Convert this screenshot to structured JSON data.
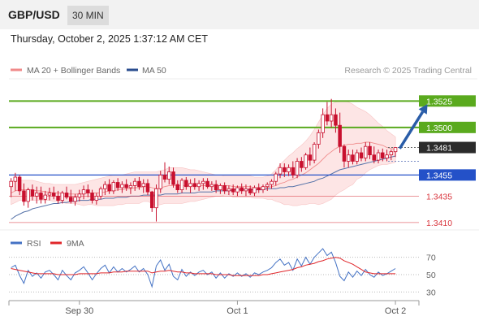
{
  "header": {
    "pair": "GBP/USD",
    "timeframe": "30 MIN",
    "timestamp": "Thursday, October 2, 2025 1:37:12 AM CET"
  },
  "legend": {
    "ma20": "MA 20 + Bollinger Bands",
    "ma50": "MA 50",
    "credit": "Research © 2025 Trading Central"
  },
  "rsi_legend": {
    "rsi": "RSI",
    "ma": "9MA"
  },
  "colors": {
    "resistance": "#5aaa1e",
    "support": "#2451c8",
    "current": "#2b2b2b",
    "support_level": "#d9363e",
    "arrow": "#2a5da8",
    "candle": "#c8102e",
    "band_fill": "#fde0e0"
  },
  "chart_data": [
    {
      "type": "candlestick",
      "levels": [
        {
          "value": 1.3525,
          "label": "1.3525",
          "kind": "resistance"
        },
        {
          "value": 1.35,
          "label": "1.3500",
          "kind": "resistance"
        },
        {
          "value": 1.3481,
          "label": "1.3481",
          "kind": "current"
        },
        {
          "value": 1.3455,
          "label": "1.3455",
          "kind": "pivot"
        },
        {
          "value": 1.3435,
          "label": "1.3435",
          "kind": "support"
        },
        {
          "value": 1.341,
          "label": "1.3410",
          "kind": "support"
        }
      ],
      "ylim": [
        1.3403,
        1.3546
      ],
      "xlim": [
        0,
        96
      ],
      "x_ticks": [
        {
          "x": 16.5,
          "label": "Sep 30"
        },
        {
          "x": 53.5,
          "label": "Oct 1"
        },
        {
          "x": 90.5,
          "label": "Oct 2"
        }
      ],
      "candles": [
        [
          1.3444,
          1.3452,
          1.3434,
          1.3449
        ],
        [
          1.3449,
          1.3457,
          1.344,
          1.3453
        ],
        [
          1.3453,
          1.3455,
          1.3436,
          1.344
        ],
        [
          1.344,
          1.3447,
          1.3426,
          1.343
        ],
        [
          1.343,
          1.3443,
          1.3424,
          1.3441
        ],
        [
          1.3441,
          1.3446,
          1.3431,
          1.3435
        ],
        [
          1.3435,
          1.3444,
          1.3428,
          1.3438
        ],
        [
          1.3438,
          1.3444,
          1.3428,
          1.3432
        ],
        [
          1.3432,
          1.344,
          1.3428,
          1.3436
        ],
        [
          1.3436,
          1.3443,
          1.3431,
          1.3438
        ],
        [
          1.3438,
          1.3444,
          1.3432,
          1.3435
        ],
        [
          1.3435,
          1.344,
          1.3428,
          1.3431
        ],
        [
          1.3431,
          1.344,
          1.3428,
          1.3438
        ],
        [
          1.3438,
          1.3444,
          1.3432,
          1.3434
        ],
        [
          1.3434,
          1.3441,
          1.3428,
          1.343
        ],
        [
          1.343,
          1.3437,
          1.3426,
          1.3434
        ],
        [
          1.3434,
          1.3441,
          1.343,
          1.3437
        ],
        [
          1.3437,
          1.3445,
          1.3432,
          1.3441
        ],
        [
          1.3441,
          1.3446,
          1.3434,
          1.3438
        ],
        [
          1.3438,
          1.3441,
          1.3428,
          1.3431
        ],
        [
          1.3431,
          1.3438,
          1.3427,
          1.3435
        ],
        [
          1.3435,
          1.3444,
          1.3432,
          1.3442
        ],
        [
          1.3442,
          1.3449,
          1.3436,
          1.3446
        ],
        [
          1.3446,
          1.3451,
          1.3437,
          1.344
        ],
        [
          1.344,
          1.345,
          1.3437,
          1.3448
        ],
        [
          1.3448,
          1.3452,
          1.344,
          1.3443
        ],
        [
          1.3443,
          1.3449,
          1.3438,
          1.3446
        ],
        [
          1.3446,
          1.3451,
          1.344,
          1.3443
        ],
        [
          1.3443,
          1.3448,
          1.3437,
          1.3445
        ],
        [
          1.3445,
          1.3452,
          1.344,
          1.3449
        ],
        [
          1.3449,
          1.3453,
          1.3441,
          1.3444
        ],
        [
          1.3444,
          1.3451,
          1.3438,
          1.3447
        ],
        [
          1.3447,
          1.3451,
          1.3436,
          1.3439
        ],
        [
          1.3439,
          1.344,
          1.342,
          1.3424
        ],
        [
          1.3424,
          1.3446,
          1.3411,
          1.3442
        ],
        [
          1.3442,
          1.3459,
          1.3438,
          1.3455
        ],
        [
          1.3455,
          1.3467,
          1.3448,
          1.3451
        ],
        [
          1.3451,
          1.3463,
          1.3446,
          1.3458
        ],
        [
          1.3458,
          1.3462,
          1.3443,
          1.3446
        ],
        [
          1.3446,
          1.345,
          1.3438,
          1.3441
        ],
        [
          1.3441,
          1.3452,
          1.3438,
          1.345
        ],
        [
          1.345,
          1.3453,
          1.3441,
          1.3444
        ],
        [
          1.3444,
          1.3451,
          1.3438,
          1.3447
        ],
        [
          1.3447,
          1.3452,
          1.3441,
          1.3444
        ],
        [
          1.3444,
          1.345,
          1.344,
          1.3447
        ],
        [
          1.3447,
          1.3452,
          1.3441,
          1.3449
        ],
        [
          1.3449,
          1.3452,
          1.3442,
          1.3444
        ],
        [
          1.3444,
          1.3449,
          1.344,
          1.3446
        ],
        [
          1.3446,
          1.345,
          1.3438,
          1.3441
        ],
        [
          1.3441,
          1.3447,
          1.3437,
          1.3445
        ],
        [
          1.3445,
          1.3448,
          1.3437,
          1.344
        ],
        [
          1.344,
          1.3445,
          1.3436,
          1.3442
        ],
        [
          1.3442,
          1.3446,
          1.3436,
          1.3439
        ],
        [
          1.3439,
          1.3445,
          1.3435,
          1.3443
        ],
        [
          1.3443,
          1.3447,
          1.3437,
          1.344
        ],
        [
          1.344,
          1.3446,
          1.3435,
          1.3442
        ],
        [
          1.3442,
          1.3445,
          1.3436,
          1.3438
        ],
        [
          1.3438,
          1.3445,
          1.3435,
          1.3443
        ],
        [
          1.3443,
          1.3447,
          1.3438,
          1.3441
        ],
        [
          1.3441,
          1.3446,
          1.3438,
          1.3444
        ],
        [
          1.3444,
          1.3448,
          1.344,
          1.3446
        ],
        [
          1.3446,
          1.3451,
          1.3442,
          1.3449
        ],
        [
          1.3449,
          1.3458,
          1.3445,
          1.3456
        ],
        [
          1.3456,
          1.3466,
          1.3452,
          1.3462
        ],
        [
          1.3462,
          1.3466,
          1.3453,
          1.3458
        ],
        [
          1.3458,
          1.3465,
          1.3454,
          1.3462
        ],
        [
          1.3462,
          1.3468,
          1.3452,
          1.3455
        ],
        [
          1.3455,
          1.3471,
          1.3452,
          1.3468
        ],
        [
          1.3468,
          1.3472,
          1.3458,
          1.3462
        ],
        [
          1.3462,
          1.3476,
          1.346,
          1.3474
        ],
        [
          1.3474,
          1.3481,
          1.3464,
          1.3469
        ],
        [
          1.3469,
          1.3486,
          1.3466,
          1.3484
        ],
        [
          1.3484,
          1.3498,
          1.348,
          1.3495
        ],
        [
          1.3495,
          1.3518,
          1.349,
          1.3512
        ],
        [
          1.3512,
          1.3524,
          1.3502,
          1.3506
        ],
        [
          1.3506,
          1.3527,
          1.35,
          1.3512
        ],
        [
          1.3512,
          1.3518,
          1.3495,
          1.3502
        ],
        [
          1.3502,
          1.3514,
          1.3476,
          1.3482
        ],
        [
          1.3482,
          1.3484,
          1.3462,
          1.3468
        ],
        [
          1.3468,
          1.3479,
          1.3462,
          1.3474
        ],
        [
          1.3474,
          1.3479,
          1.3465,
          1.3468
        ],
        [
          1.3468,
          1.3479,
          1.3465,
          1.3476
        ],
        [
          1.3476,
          1.3481,
          1.3468,
          1.3471
        ],
        [
          1.3471,
          1.3486,
          1.3468,
          1.3482
        ],
        [
          1.3482,
          1.3486,
          1.347,
          1.3474
        ],
        [
          1.3474,
          1.3482,
          1.3466,
          1.3469
        ],
        [
          1.3469,
          1.3479,
          1.3466,
          1.3476
        ],
        [
          1.3476,
          1.348,
          1.3468,
          1.3471
        ],
        [
          1.3471,
          1.3479,
          1.3468,
          1.3474
        ],
        [
          1.3474,
          1.3479,
          1.3469,
          1.3477
        ],
        [
          1.3477,
          1.348,
          1.3472,
          1.3481
        ]
      ],
      "ma20": [
        1.3438,
        1.344,
        1.3441,
        1.3441,
        1.3441,
        1.3441,
        1.344,
        1.344,
        1.3439,
        1.3439,
        1.3438,
        1.3438,
        1.3438,
        1.3437,
        1.3437,
        1.3437,
        1.3437,
        1.3437,
        1.3438,
        1.3438,
        1.3438,
        1.3438,
        1.3439,
        1.344,
        1.344,
        1.3441,
        1.3441,
        1.3442,
        1.3442,
        1.3443,
        1.3443,
        1.3444,
        1.3444,
        1.3443,
        1.3442,
        1.3443,
        1.3444,
        1.3445,
        1.3445,
        1.3445,
        1.3445,
        1.3445,
        1.3445,
        1.3445,
        1.3445,
        1.3445,
        1.3445,
        1.3445,
        1.3445,
        1.3445,
        1.3445,
        1.3445,
        1.3444,
        1.3444,
        1.3444,
        1.3444,
        1.3444,
        1.3443,
        1.3443,
        1.3443,
        1.3443,
        1.3444,
        1.3445,
        1.3447,
        1.3448,
        1.345,
        1.3451,
        1.3453,
        1.3455,
        1.3457,
        1.346,
        1.3463,
        1.3466,
        1.347,
        1.3474,
        1.3477,
        1.348,
        1.3482,
        1.3483,
        1.3484,
        1.3484,
        1.3485,
        1.3485,
        1.3486,
        1.3486,
        1.3485,
        1.3484,
        1.3483,
        1.3481,
        1.348,
        1.3479
      ],
      "bb_upper": [
        1.3449,
        1.345,
        1.345,
        1.345,
        1.345,
        1.345,
        1.3449,
        1.3448,
        1.3447,
        1.3447,
        1.3446,
        1.3446,
        1.3446,
        1.3446,
        1.3446,
        1.3446,
        1.3447,
        1.3448,
        1.3449,
        1.345,
        1.3451,
        1.3452,
        1.3453,
        1.3454,
        1.3455,
        1.3455,
        1.3455,
        1.3456,
        1.3457,
        1.3458,
        1.3458,
        1.3458,
        1.3458,
        1.3458,
        1.3458,
        1.3459,
        1.346,
        1.3462,
        1.3462,
        1.3462,
        1.3462,
        1.3461,
        1.346,
        1.346,
        1.3459,
        1.3458,
        1.3457,
        1.3456,
        1.3455,
        1.3455,
        1.3454,
        1.3454,
        1.3454,
        1.3454,
        1.3454,
        1.3454,
        1.3454,
        1.3453,
        1.3453,
        1.3453,
        1.3454,
        1.3456,
        1.346,
        1.3465,
        1.3469,
        1.3473,
        1.3476,
        1.348,
        1.3483,
        1.3487,
        1.3492,
        1.3498,
        1.3505,
        1.3512,
        1.3518,
        1.3522,
        1.3524,
        1.3525,
        1.3525,
        1.3524,
        1.3522,
        1.3519,
        1.3517,
        1.3515,
        1.3512,
        1.3508,
        1.3504,
        1.3501,
        1.3497,
        1.3494,
        1.3491
      ],
      "bb_lower": [
        1.3427,
        1.3429,
        1.3431,
        1.3431,
        1.3431,
        1.3431,
        1.3431,
        1.3431,
        1.3431,
        1.3431,
        1.343,
        1.343,
        1.3429,
        1.3428,
        1.3428,
        1.3428,
        1.3427,
        1.3426,
        1.3427,
        1.3427,
        1.3426,
        1.3426,
        1.3426,
        1.3426,
        1.3426,
        1.3427,
        1.3427,
        1.3428,
        1.3428,
        1.3428,
        1.3428,
        1.343,
        1.343,
        1.3428,
        1.3426,
        1.3427,
        1.3428,
        1.3428,
        1.3428,
        1.3428,
        1.3428,
        1.3429,
        1.343,
        1.343,
        1.3431,
        1.3432,
        1.3433,
        1.3434,
        1.3435,
        1.3435,
        1.3436,
        1.3436,
        1.3434,
        1.3434,
        1.3434,
        1.3434,
        1.3434,
        1.3433,
        1.3433,
        1.3433,
        1.3432,
        1.3432,
        1.343,
        1.3429,
        1.3427,
        1.3427,
        1.3426,
        1.3426,
        1.3427,
        1.3427,
        1.3428,
        1.3428,
        1.3427,
        1.3428,
        1.343,
        1.3432,
        1.3436,
        1.3439,
        1.3441,
        1.3444,
        1.3446,
        1.3451,
        1.3453,
        1.3457,
        1.346,
        1.3462,
        1.3464,
        1.3465,
        1.3465,
        1.3466,
        1.3467
      ],
      "ma50": [
        1.3413,
        1.3416,
        1.3418,
        1.342,
        1.3421,
        1.3423,
        1.3424,
        1.3425,
        1.3426,
        1.3427,
        1.3428,
        1.3428,
        1.3429,
        1.3429,
        1.343,
        1.343,
        1.3431,
        1.3431,
        1.3431,
        1.3432,
        1.3432,
        1.3432,
        1.3433,
        1.3433,
        1.3433,
        1.3434,
        1.3434,
        1.3434,
        1.3435,
        1.3435,
        1.3435,
        1.3436,
        1.3436,
        1.3436,
        1.3436,
        1.3436,
        1.3437,
        1.3437,
        1.3437,
        1.3437,
        1.3438,
        1.3438,
        1.3438,
        1.3438,
        1.3439,
        1.3439,
        1.3439,
        1.3439,
        1.344,
        1.344,
        1.344,
        1.344,
        1.3441,
        1.3441,
        1.3441,
        1.3441,
        1.3441,
        1.3441,
        1.3441,
        1.3441,
        1.3442,
        1.3442,
        1.3442,
        1.3443,
        1.3443,
        1.3444,
        1.3444,
        1.3445,
        1.3446,
        1.3447,
        1.3448,
        1.3449,
        1.3451,
        1.3452,
        1.3454,
        1.3456,
        1.3458,
        1.346,
        1.3461,
        1.3462,
        1.3463,
        1.3464,
        1.3465,
        1.3466,
        1.3467,
        1.3468,
        1.3469,
        1.347,
        1.3471,
        1.3472,
        1.3473
      ],
      "projection": {
        "from_x": 91,
        "from_y": 1.348,
        "to_x": 97.5,
        "to_y": 1.3522
      }
    },
    {
      "type": "line",
      "title": "RSI",
      "ylim": [
        20,
        80
      ],
      "y_ticks": [
        70,
        50,
        30
      ],
      "series": [
        {
          "name": "RSI",
          "color": "#4472c4",
          "values": [
            58,
            61,
            49,
            40,
            55,
            48,
            52,
            46,
            53,
            55,
            50,
            44,
            55,
            49,
            44,
            52,
            55,
            59,
            52,
            44,
            51,
            57,
            61,
            52,
            59,
            53,
            57,
            53,
            56,
            60,
            53,
            57,
            50,
            36,
            60,
            67,
            55,
            62,
            48,
            44,
            56,
            48,
            53,
            49,
            53,
            55,
            50,
            53,
            46,
            52,
            46,
            51,
            48,
            52,
            48,
            51,
            47,
            52,
            50,
            53,
            55,
            58,
            64,
            68,
            61,
            64,
            55,
            68,
            60,
            70,
            62,
            70,
            75,
            80,
            72,
            76,
            64,
            48,
            43,
            53,
            47,
            54,
            49,
            56,
            50,
            47,
            53,
            49,
            51,
            54,
            57
          ]
        },
        {
          "name": "9MA",
          "color": "#e0262a",
          "values": [
            57,
            56,
            55,
            54,
            53,
            52,
            51,
            51,
            51,
            51,
            51,
            50,
            50,
            50,
            50,
            50,
            51,
            51,
            51,
            51,
            51,
            52,
            52,
            52,
            53,
            53,
            53,
            54,
            54,
            54,
            54,
            54,
            54,
            52,
            53,
            54,
            54,
            55,
            54,
            53,
            53,
            52,
            52,
            51,
            51,
            51,
            51,
            51,
            50,
            50,
            50,
            50,
            49,
            49,
            49,
            49,
            49,
            49,
            49,
            50,
            50,
            51,
            52,
            53,
            54,
            55,
            56,
            58,
            59,
            61,
            62,
            63,
            65,
            66,
            68,
            69,
            70,
            69,
            66,
            64,
            62,
            59,
            56,
            53,
            52,
            51,
            51,
            51,
            51,
            51,
            51
          ]
        }
      ]
    }
  ]
}
